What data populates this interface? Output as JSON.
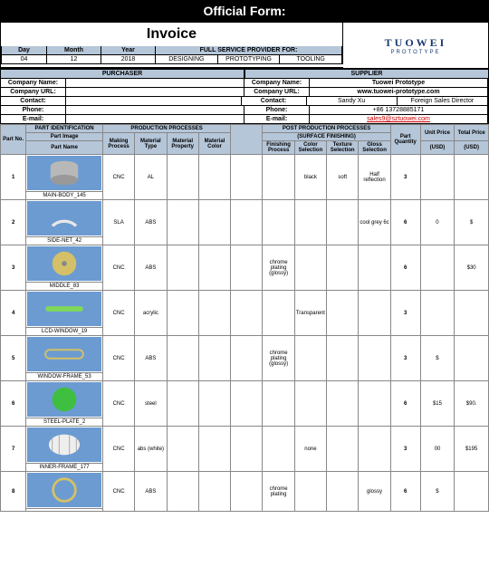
{
  "header": "Official Form:",
  "title": "Invoice",
  "logo": {
    "main": "TUOWEI",
    "sub": "PROTOTYPE"
  },
  "date_labels": {
    "day": "Day",
    "month": "Month",
    "year": "Year",
    "full_service": "FULL SERVICE PROVIDER FOR:"
  },
  "date_values": {
    "day": "04",
    "month": "12",
    "year": "2018"
  },
  "services": {
    "designing": "DESIGNING",
    "prototyping": "PROTOTYPING",
    "tooling": "TOOLING"
  },
  "section": {
    "purchaser": "PURCHASER",
    "supplier": "SUPPLIER"
  },
  "labels": {
    "company_name": "Company Name:",
    "company_url": "Company URL:",
    "contact": "Contact:",
    "phone": "Phone:",
    "email": "E-mail:"
  },
  "supplier": {
    "name": "Tuowei Prototype",
    "url": "www.tuowei-prototype.com",
    "contact_name": "Sandy Xu",
    "contact_role": "Foreign Sales Director",
    "phone": "+86 13728885171",
    "email": "sales9@sztuowei.com"
  },
  "table_headers": {
    "part_no": "Part No.",
    "part_ident": "PART IDENTIFICATION",
    "part_image": "Part Image",
    "part_name": "Part Name",
    "prod_proc": "PRODUCTION PROCESSES",
    "making": "Making Process",
    "mat_type": "Material Type",
    "mat_prop": "Material Property",
    "mat_color": "Material Color",
    "post_prod": "POST PRODUCTION PROCESSES",
    "surface": "(SURFACE FINISHING)",
    "fin_proc": "Finishing Process",
    "color_sel": "Color Selection",
    "tex_sel": "Texture Selection",
    "gloss_sel": "Gloss Selection",
    "qty": "Part Quantity",
    "unit_price": "Unit Price",
    "total_price": "Total Price",
    "usd": "(USD)",
    "usd2": "(USD)"
  },
  "parts": [
    {
      "no": "1",
      "name": "MAIN-BODY_145",
      "making": "CNC",
      "mat": "AL",
      "color_sel": "black",
      "tex": "soft",
      "gloss": "Half reflection",
      "qty": "3",
      "unit": "",
      "total": "",
      "img_shape": "cylinder",
      "img_color": "#b8b8b8"
    },
    {
      "no": "2",
      "name": "SIDE-NET_42",
      "making": "SLA",
      "mat": "ABS",
      "gloss": "cool grey 6c",
      "qty": "6",
      "unit": "0",
      "total": "$",
      "img_shape": "cap",
      "img_color": "#e8e8e8"
    },
    {
      "no": "3",
      "name": "MIDDLE_83",
      "making": "CNC",
      "mat": "ABS",
      "fin": "chrome plating (glossy)",
      "qty": "6",
      "unit": "",
      "total": "$30",
      "img_shape": "disc",
      "img_color": "#d4c068"
    },
    {
      "no": "4",
      "name": "LCD-WINDOW_19",
      "making": "CNC",
      "mat": "acrylic",
      "color_sel": "Transparent",
      "qty": "3",
      "unit": "",
      "total": "",
      "img_shape": "bar",
      "img_color": "#7fd858"
    },
    {
      "no": "5",
      "name": "WINDOW-FRAME_53",
      "making": "CNC",
      "mat": "ABS",
      "fin": "chrome plating (glossy)",
      "qty": "3",
      "unit": "$",
      "total": "",
      "img_shape": "frame",
      "img_color": "#d4c068"
    },
    {
      "no": "6",
      "name": "STEEL-PLATE_2",
      "making": "CNC",
      "mat": "steel",
      "qty": "6",
      "unit": "$15",
      "total": "$90.",
      "img_shape": "circle",
      "img_color": "#3fbf3f"
    },
    {
      "no": "7",
      "name": "INNER-FRAME_177",
      "making": "CNC",
      "mat": "abs (white)",
      "color_sel": "none",
      "qty": "3",
      "unit": "00",
      "total": "$195",
      "img_shape": "cage",
      "img_color": "#dadada"
    },
    {
      "no": "8",
      "name": "",
      "making": "CNC",
      "mat": "ABS",
      "fin": "chrome plating",
      "gloss": "glossy",
      "qty": "6",
      "unit": "$",
      "total": "",
      "img_shape": "ring",
      "img_color": "#d4c068"
    }
  ]
}
